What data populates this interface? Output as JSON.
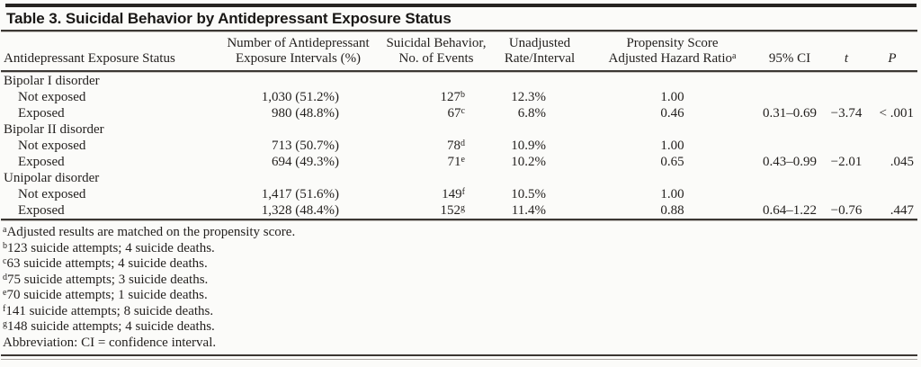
{
  "colors": {
    "top_bar": "#262320",
    "rule_dark": "#3b3733",
    "rule_light": "#c6c3bf",
    "text": "#221f1d"
  },
  "table": {
    "title": "Table 3. Suicidal Behavior by Antidepressant Exposure Status",
    "header": {
      "col1": {
        "line2": "Antidepressant Exposure Status"
      },
      "col2": {
        "line1": "Number of Antidepressant",
        "line2": "Exposure Intervals (%)"
      },
      "col3": {
        "line1": "Suicidal Behavior,",
        "line2": "No. of Events"
      },
      "col4": {
        "line1": "Unadjusted",
        "line2": "Rate/Interval"
      },
      "col5": {
        "line1": "Propensity Score",
        "line2": "Adjusted Hazard Ratio",
        "sup": "a"
      },
      "col6": {
        "label": "95% CI"
      },
      "col7": {
        "label": "t"
      },
      "col8": {
        "label": "P"
      }
    },
    "rows": [
      {
        "type": "group",
        "label": "Bipolar I disorder"
      },
      {
        "type": "data",
        "label": "Not exposed",
        "intervals": "1,030 (51.2%)",
        "events": "127",
        "events_sup": "b",
        "rate": "12.3%",
        "hr": "1.00",
        "ci": "",
        "t": "",
        "p": ""
      },
      {
        "type": "data",
        "label": "Exposed",
        "intervals": "980 (48.8%)",
        "events": "67",
        "events_sup": "c",
        "rate": "6.8%",
        "hr": "0.46",
        "ci": "0.31–0.69",
        "t": "−3.74",
        "p": "< .001"
      },
      {
        "type": "group",
        "label": "Bipolar II disorder"
      },
      {
        "type": "data",
        "label": "Not exposed",
        "intervals": "713 (50.7%)",
        "events": "78",
        "events_sup": "d",
        "rate": "10.9%",
        "hr": "1.00",
        "ci": "",
        "t": "",
        "p": ""
      },
      {
        "type": "data",
        "label": "Exposed",
        "intervals": "694 (49.3%)",
        "events": "71",
        "events_sup": "e",
        "rate": "10.2%",
        "hr": "0.65",
        "ci": "0.43–0.99",
        "t": "−2.01",
        "p": ".045"
      },
      {
        "type": "group",
        "label": "Unipolar disorder"
      },
      {
        "type": "data",
        "label": "Not exposed",
        "intervals": "1,417 (51.6%)",
        "events": "149",
        "events_sup": "f",
        "rate": "10.5%",
        "hr": "1.00",
        "ci": "",
        "t": "",
        "p": ""
      },
      {
        "type": "data",
        "label": "Exposed",
        "intervals": "1,328 (48.4%)",
        "events": "152",
        "events_sup": "g",
        "rate": "11.4%",
        "hr": "0.88",
        "ci": "0.64–1.22",
        "t": "−0.76",
        "p": ".447"
      }
    ],
    "footnotes": [
      {
        "sup": "a",
        "text": "Adjusted results are matched on the propensity score."
      },
      {
        "sup": "b",
        "text": "123 suicide attempts; 4 suicide deaths."
      },
      {
        "sup": "c",
        "text": "63 suicide attempts; 4 suicide deaths."
      },
      {
        "sup": "d",
        "text": "75 suicide attempts; 3 suicide deaths."
      },
      {
        "sup": "e",
        "text": "70 suicide attempts; 1 suicide deaths."
      },
      {
        "sup": "f",
        "text": "141 suicide attempts; 8 suicide deaths."
      },
      {
        "sup": "g",
        "text": "148 suicide attempts; 4 suicide deaths."
      },
      {
        "sup": "",
        "text": "Abbreviation: CI = confidence interval."
      }
    ]
  }
}
